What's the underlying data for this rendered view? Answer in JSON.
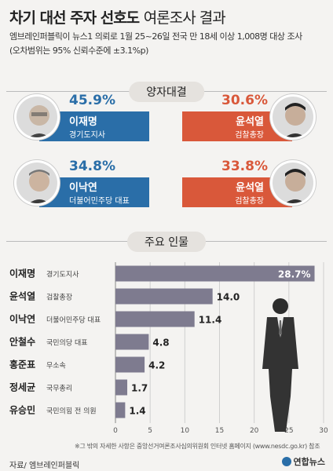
{
  "title": {
    "main": "차기 대선 주자 선호도",
    "light": "여론조사 결과"
  },
  "subtitle": {
    "line1": "엠브레인퍼블릭이 뉴스1 의뢰로 1월 25~26일 전국 만 18세 이상 1,008명 대상 조사",
    "line2": "(오차범위는 95% 신뢰수준에 ±3.1%p)"
  },
  "head_to_head_label": "양자대결",
  "matchups": [
    {
      "left": {
        "name": "이재명",
        "role": "경기도지사",
        "pct": "45.9%"
      },
      "right": {
        "name": "윤석열",
        "role": "검찰총장",
        "pct": "30.6%"
      }
    },
    {
      "left": {
        "name": "이낙연",
        "role": "더불어민주당 대표",
        "pct": "34.8%"
      },
      "right": {
        "name": "윤석열",
        "role": "검찰총장",
        "pct": "33.8%"
      }
    }
  ],
  "main_people_label": "주요 인물",
  "chart_data": {
    "type": "bar",
    "orientation": "horizontal",
    "categories": [
      "이재명",
      "윤석열",
      "이낙연",
      "안철수",
      "홍준표",
      "정세균",
      "유승민"
    ],
    "roles": [
      "경기도지사",
      "검찰총장",
      "더불어민주당 대표",
      "국민의당 대표",
      "무소속",
      "국무총리",
      "국민의힘 전 의원"
    ],
    "values": [
      28.7,
      14.0,
      11.4,
      4.8,
      4.2,
      1.7,
      1.4
    ],
    "value_labels": [
      "28.7%",
      "14.0",
      "11.4",
      "4.8",
      "4.2",
      "1.7",
      "1.4"
    ],
    "xlim": [
      0,
      30
    ],
    "xticks": [
      0,
      5,
      10,
      15,
      20,
      25,
      30
    ],
    "grid": true
  },
  "footnote": "※그 밖의 자세한 사항은 중앙선거여론조사심의위원회 인터넷 홈페이지 (www.nesdc.go.kr) 참조",
  "source": "자료/ 엠브레인퍼블릭",
  "logo": "연합뉴스",
  "colors": {
    "blue": "#2a6ea8",
    "orange": "#d9583a",
    "bar": "#7e7b8f"
  }
}
